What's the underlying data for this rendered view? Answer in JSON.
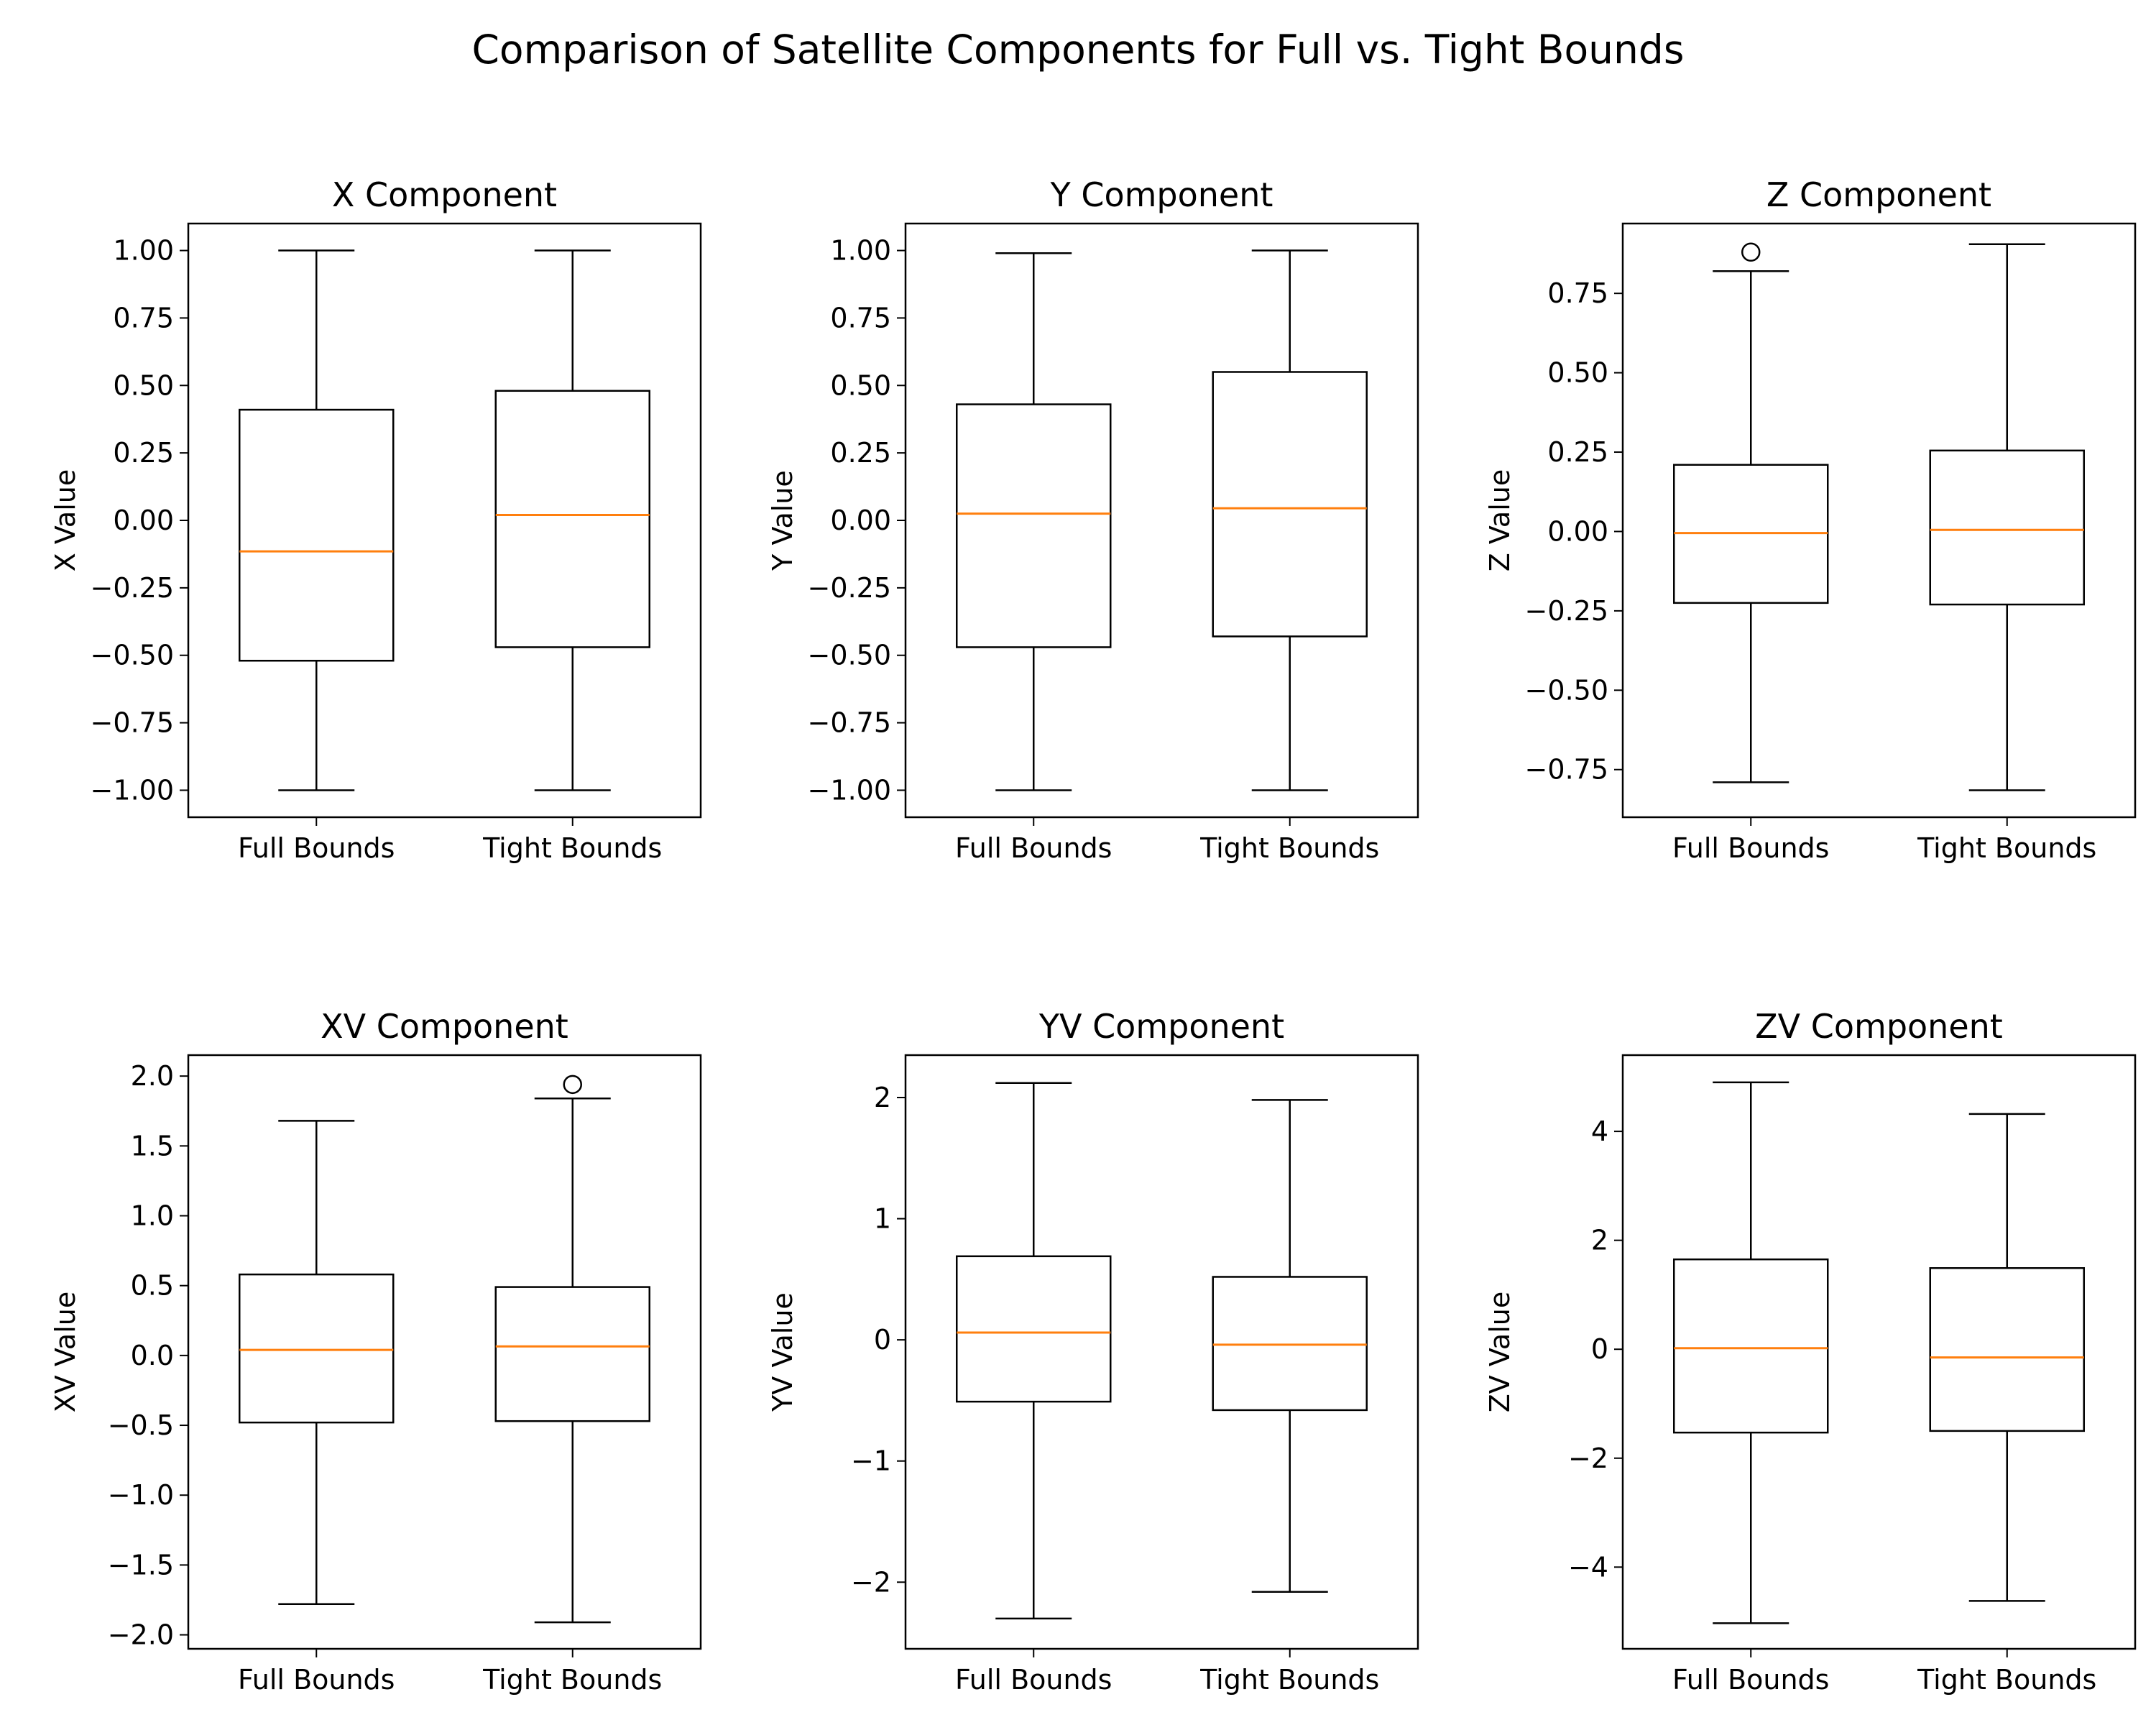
{
  "figure": {
    "title": "Comparison of Satellite Components for Full vs. Tight Bounds"
  },
  "colors": {
    "box": "#000000",
    "median": "#ff7f0e",
    "background": "#ffffff"
  },
  "chart_data": [
    {
      "type": "box",
      "title": "X Component",
      "ylabel": "X Value",
      "categories": [
        "Full Bounds",
        "Tight Bounds"
      ],
      "ylim": [
        -1.1,
        1.1
      ],
      "yticks": [
        -1.0,
        -0.75,
        -0.5,
        -0.25,
        0.0,
        0.25,
        0.5,
        0.75,
        1.0
      ],
      "ytick_labels": [
        "−1.00",
        "−0.75",
        "−0.50",
        "−0.25",
        "0.00",
        "0.25",
        "0.50",
        "0.75",
        "1.00"
      ],
      "boxes": [
        {
          "whisker_low": -1.0,
          "q1": -0.52,
          "median": -0.115,
          "q3": 0.41,
          "whisker_high": 1.0,
          "outliers": []
        },
        {
          "whisker_low": -1.0,
          "q1": -0.47,
          "median": 0.02,
          "q3": 0.48,
          "whisker_high": 1.0,
          "outliers": []
        }
      ]
    },
    {
      "type": "box",
      "title": "Y Component",
      "ylabel": "Y Value",
      "categories": [
        "Full Bounds",
        "Tight Bounds"
      ],
      "ylim": [
        -1.1,
        1.1
      ],
      "yticks": [
        -1.0,
        -0.75,
        -0.5,
        -0.25,
        0.0,
        0.25,
        0.5,
        0.75,
        1.0
      ],
      "ytick_labels": [
        "−1.00",
        "−0.75",
        "−0.50",
        "−0.25",
        "0.00",
        "0.25",
        "0.50",
        "0.75",
        "1.00"
      ],
      "boxes": [
        {
          "whisker_low": -1.0,
          "q1": -0.47,
          "median": 0.025,
          "q3": 0.43,
          "whisker_high": 0.99,
          "outliers": []
        },
        {
          "whisker_low": -1.0,
          "q1": -0.43,
          "median": 0.045,
          "q3": 0.55,
          "whisker_high": 1.0,
          "outliers": []
        }
      ]
    },
    {
      "type": "box",
      "title": "Z Component",
      "ylabel": "Z Value",
      "categories": [
        "Full Bounds",
        "Tight Bounds"
      ],
      "ylim": [
        -0.9,
        0.97
      ],
      "yticks": [
        -0.75,
        -0.5,
        -0.25,
        0.0,
        0.25,
        0.5,
        0.75
      ],
      "ytick_labels": [
        "−0.75",
        "−0.50",
        "−0.25",
        "0.00",
        "0.25",
        "0.50",
        "0.75"
      ],
      "boxes": [
        {
          "whisker_low": -0.79,
          "q1": -0.225,
          "median": -0.005,
          "q3": 0.21,
          "whisker_high": 0.82,
          "outliers": [
            0.88
          ]
        },
        {
          "whisker_low": -0.815,
          "q1": -0.23,
          "median": 0.005,
          "q3": 0.255,
          "whisker_high": 0.905,
          "outliers": []
        }
      ]
    },
    {
      "type": "box",
      "title": "XV Component",
      "ylabel": "XV Value",
      "categories": [
        "Full Bounds",
        "Tight Bounds"
      ],
      "ylim": [
        -2.1,
        2.15
      ],
      "yticks": [
        -2.0,
        -1.5,
        -1.0,
        -0.5,
        0.0,
        0.5,
        1.0,
        1.5,
        2.0
      ],
      "ytick_labels": [
        "−2.0",
        "−1.5",
        "−1.0",
        "−0.5",
        "0.0",
        "0.5",
        "1.0",
        "1.5",
        "2.0"
      ],
      "boxes": [
        {
          "whisker_low": -1.78,
          "q1": -0.48,
          "median": 0.04,
          "q3": 0.58,
          "whisker_high": 1.68,
          "outliers": []
        },
        {
          "whisker_low": -1.91,
          "q1": -0.47,
          "median": 0.065,
          "q3": 0.49,
          "whisker_high": 1.84,
          "outliers": [
            1.94
          ]
        }
      ]
    },
    {
      "type": "box",
      "title": "YV Component",
      "ylabel": "YV Value",
      "categories": [
        "Full Bounds",
        "Tight Bounds"
      ],
      "ylim": [
        -2.55,
        2.35
      ],
      "yticks": [
        -2,
        -1,
        0,
        1,
        2
      ],
      "ytick_labels": [
        "−2",
        "−1",
        "0",
        "1",
        "2"
      ],
      "boxes": [
        {
          "whisker_low": -2.3,
          "q1": -0.51,
          "median": 0.06,
          "q3": 0.69,
          "whisker_high": 2.12,
          "outliers": []
        },
        {
          "whisker_low": -2.08,
          "q1": -0.58,
          "median": -0.04,
          "q3": 0.52,
          "whisker_high": 1.98,
          "outliers": []
        }
      ]
    },
    {
      "type": "box",
      "title": "ZV Component",
      "ylabel": "ZV Value",
      "categories": [
        "Full Bounds",
        "Tight Bounds"
      ],
      "ylim": [
        -5.5,
        5.4
      ],
      "yticks": [
        -4,
        -2,
        0,
        2,
        4
      ],
      "ytick_labels": [
        "−4",
        "−2",
        "0",
        "2",
        "4"
      ],
      "boxes": [
        {
          "whisker_low": -5.03,
          "q1": -1.53,
          "median": 0.02,
          "q3": 1.65,
          "whisker_high": 4.9,
          "outliers": []
        },
        {
          "whisker_low": -4.62,
          "q1": -1.5,
          "median": -0.15,
          "q3": 1.49,
          "whisker_high": 4.32,
          "outliers": []
        }
      ]
    }
  ]
}
